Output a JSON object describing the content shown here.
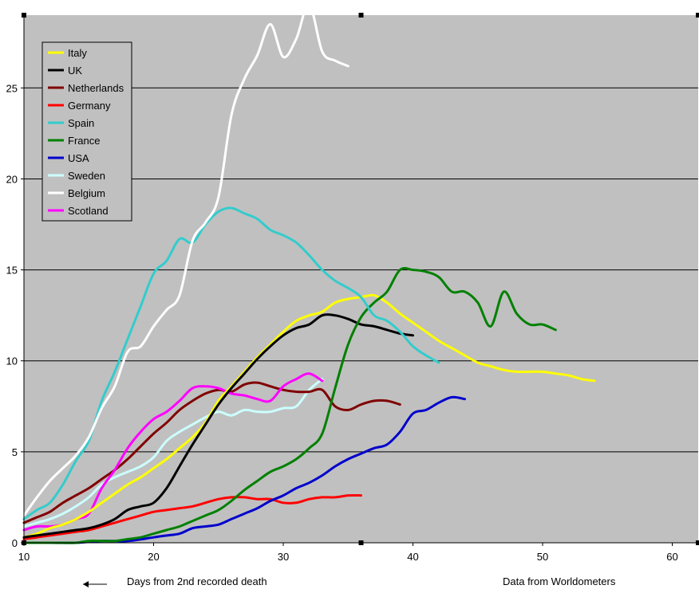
{
  "chart_data": {
    "type": "line",
    "title": "",
    "xlabel": "Days from 2nd recorded death",
    "ylabel": "",
    "source_note": "Data from Worldometers",
    "xlim": [
      10,
      62
    ],
    "ylim": [
      0,
      29
    ],
    "x_ticks": [
      10,
      20,
      30,
      40,
      50,
      60
    ],
    "y_ticks": [
      0,
      5,
      10,
      15,
      20,
      25
    ],
    "grid": "horizontal",
    "legend_position": "top-left",
    "background": "#c0c0c0",
    "series": [
      {
        "name": "Italy",
        "color": "#ffff00",
        "x": [
          10,
          11,
          12,
          13,
          14,
          15,
          16,
          17,
          18,
          19,
          20,
          21,
          22,
          23,
          24,
          25,
          26,
          27,
          28,
          29,
          30,
          31,
          32,
          33,
          34,
          35,
          36,
          37,
          38,
          39,
          40,
          41,
          42,
          43,
          44,
          45,
          46,
          47,
          48,
          49,
          50,
          51,
          52,
          53,
          54
        ],
        "y": [
          0.3,
          0.5,
          0.8,
          1.0,
          1.3,
          1.7,
          2.2,
          2.7,
          3.2,
          3.6,
          4.1,
          4.6,
          5.2,
          5.8,
          6.6,
          7.8,
          8.6,
          9.4,
          10.2,
          10.9,
          11.6,
          12.2,
          12.5,
          12.7,
          13.2,
          13.4,
          13.5,
          13.6,
          13.2,
          12.6,
          12.1,
          11.6,
          11.1,
          10.7,
          10.3,
          9.9,
          9.7,
          9.5,
          9.4,
          9.4,
          9.4,
          9.3,
          9.2,
          9.0,
          8.9
        ]
      },
      {
        "name": "UK",
        "color": "#000000",
        "x": [
          10,
          11,
          12,
          13,
          14,
          15,
          16,
          17,
          18,
          19,
          20,
          21,
          22,
          23,
          24,
          25,
          26,
          27,
          28,
          29,
          30,
          31,
          32,
          33,
          34,
          35,
          36,
          37,
          38,
          39,
          40
        ],
        "y": [
          0.3,
          0.4,
          0.5,
          0.6,
          0.7,
          0.8,
          1.0,
          1.3,
          1.8,
          2.0,
          2.2,
          3.0,
          4.2,
          5.4,
          6.5,
          7.6,
          8.5,
          9.3,
          10.1,
          10.8,
          11.4,
          11.8,
          12.0,
          12.5,
          12.5,
          12.3,
          12.0,
          11.9,
          11.7,
          11.5,
          11.4
        ]
      },
      {
        "name": "Netherlands",
        "color": "#800000",
        "x": [
          10,
          11,
          12,
          13,
          14,
          15,
          16,
          17,
          18,
          19,
          20,
          21,
          22,
          23,
          24,
          25,
          26,
          27,
          28,
          29,
          30,
          31,
          32,
          33,
          34,
          35,
          36,
          37,
          38,
          39
        ],
        "y": [
          1.1,
          1.4,
          1.7,
          2.2,
          2.6,
          3.0,
          3.5,
          4.0,
          4.6,
          5.3,
          6.0,
          6.6,
          7.3,
          7.8,
          8.2,
          8.4,
          8.3,
          8.7,
          8.8,
          8.6,
          8.4,
          8.3,
          8.3,
          8.4,
          7.5,
          7.3,
          7.6,
          7.8,
          7.8,
          7.6
        ]
      },
      {
        "name": "Germany",
        "color": "#ff0000",
        "x": [
          10,
          11,
          12,
          13,
          14,
          15,
          16,
          17,
          18,
          19,
          20,
          21,
          22,
          23,
          24,
          25,
          26,
          27,
          28,
          29,
          30,
          31,
          32,
          33,
          34,
          35,
          36
        ],
        "y": [
          0.2,
          0.3,
          0.4,
          0.5,
          0.6,
          0.7,
          0.9,
          1.1,
          1.3,
          1.5,
          1.7,
          1.8,
          1.9,
          2.0,
          2.2,
          2.4,
          2.5,
          2.5,
          2.4,
          2.4,
          2.2,
          2.2,
          2.4,
          2.5,
          2.5,
          2.6,
          2.6
        ]
      },
      {
        "name": "Spain",
        "color": "#33cccc",
        "x": [
          10,
          11,
          12,
          13,
          14,
          15,
          16,
          17,
          18,
          19,
          20,
          21,
          22,
          23,
          24,
          25,
          26,
          27,
          28,
          29,
          30,
          31,
          32,
          33,
          34,
          35,
          36,
          37,
          38,
          39,
          40,
          41,
          42
        ],
        "y": [
          1.3,
          1.8,
          2.2,
          3.2,
          4.5,
          5.6,
          7.8,
          9.4,
          11.2,
          13.0,
          14.8,
          15.5,
          16.7,
          16.5,
          17.5,
          18.2,
          18.4,
          18.1,
          17.8,
          17.2,
          16.9,
          16.5,
          15.8,
          15.0,
          14.4,
          14.0,
          13.5,
          12.5,
          12.2,
          11.6,
          10.8,
          10.3,
          9.9
        ]
      },
      {
        "name": "France",
        "color": "#008000",
        "x": [
          10,
          11,
          12,
          13,
          14,
          15,
          16,
          17,
          18,
          19,
          20,
          21,
          22,
          23,
          24,
          25,
          26,
          27,
          28,
          29,
          30,
          31,
          32,
          33,
          34,
          35,
          36,
          37,
          38,
          39,
          40,
          41,
          42,
          43,
          44,
          45,
          46,
          47,
          48,
          49,
          50,
          51
        ],
        "y": [
          0.0,
          0.0,
          0.0,
          0.0,
          0.0,
          0.1,
          0.1,
          0.1,
          0.2,
          0.3,
          0.5,
          0.7,
          0.9,
          1.2,
          1.5,
          1.8,
          2.3,
          2.9,
          3.4,
          3.9,
          4.2,
          4.6,
          5.2,
          6.0,
          8.5,
          10.9,
          12.4,
          13.2,
          13.8,
          15.0,
          15.0,
          14.9,
          14.6,
          13.8,
          13.8,
          13.2,
          11.9,
          13.8,
          12.6,
          12.0,
          12.0,
          11.7
        ]
      },
      {
        "name": "USA",
        "color": "#0000cc",
        "x": [
          10,
          12,
          14,
          16,
          18,
          20,
          21,
          22,
          23,
          24,
          25,
          26,
          27,
          28,
          29,
          30,
          31,
          32,
          33,
          34,
          35,
          36,
          37,
          38,
          39,
          40,
          41,
          42,
          43,
          44
        ],
        "y": [
          0.0,
          0.0,
          0.0,
          0.1,
          0.1,
          0.3,
          0.4,
          0.5,
          0.8,
          0.9,
          1.0,
          1.3,
          1.6,
          1.9,
          2.3,
          2.6,
          3.0,
          3.3,
          3.7,
          4.2,
          4.6,
          4.9,
          5.2,
          5.4,
          6.1,
          7.1,
          7.3,
          7.7,
          8.0,
          7.9
        ]
      },
      {
        "name": "Sweden",
        "color": "#ccffff",
        "x": [
          10,
          11,
          12,
          13,
          14,
          15,
          16,
          17,
          18,
          19,
          20,
          21,
          22,
          23,
          24,
          25,
          26,
          27,
          28,
          29,
          30,
          31,
          32,
          33
        ],
        "y": [
          0.9,
          1.1,
          1.3,
          1.6,
          2.0,
          2.5,
          3.2,
          3.6,
          3.9,
          4.2,
          4.7,
          5.6,
          6.1,
          6.5,
          6.9,
          7.2,
          7.0,
          7.3,
          7.2,
          7.2,
          7.4,
          7.5,
          8.4,
          9.0
        ]
      },
      {
        "name": "Belgium",
        "color": "#ffffff",
        "x": [
          10,
          11,
          12,
          13,
          14,
          15,
          16,
          17,
          18,
          19,
          20,
          21,
          22,
          23,
          24,
          25,
          26,
          27,
          28,
          29,
          30,
          31,
          32,
          33,
          34,
          35
        ],
        "y": [
          1.5,
          2.5,
          3.4,
          4.1,
          4.8,
          5.8,
          7.4,
          8.6,
          10.5,
          10.8,
          11.9,
          12.8,
          13.6,
          16.6,
          17.6,
          19.0,
          23.5,
          25.5,
          26.8,
          28.5,
          26.7,
          27.7,
          29.6,
          27.0,
          26.5,
          26.2
        ]
      },
      {
        "name": "Scotland",
        "color": "#ff00ff",
        "x": [
          10,
          11,
          12,
          13,
          14,
          15,
          16,
          17,
          18,
          19,
          20,
          21,
          22,
          23,
          24,
          25,
          26,
          27,
          28,
          29,
          30,
          31,
          32,
          33
        ],
        "y": [
          0.7,
          0.9,
          0.9,
          1.0,
          1.3,
          1.6,
          3.0,
          4.0,
          5.2,
          6.1,
          6.8,
          7.2,
          7.8,
          8.5,
          8.6,
          8.5,
          8.2,
          8.1,
          7.9,
          7.8,
          8.6,
          9.0,
          9.3,
          8.9
        ]
      }
    ]
  }
}
